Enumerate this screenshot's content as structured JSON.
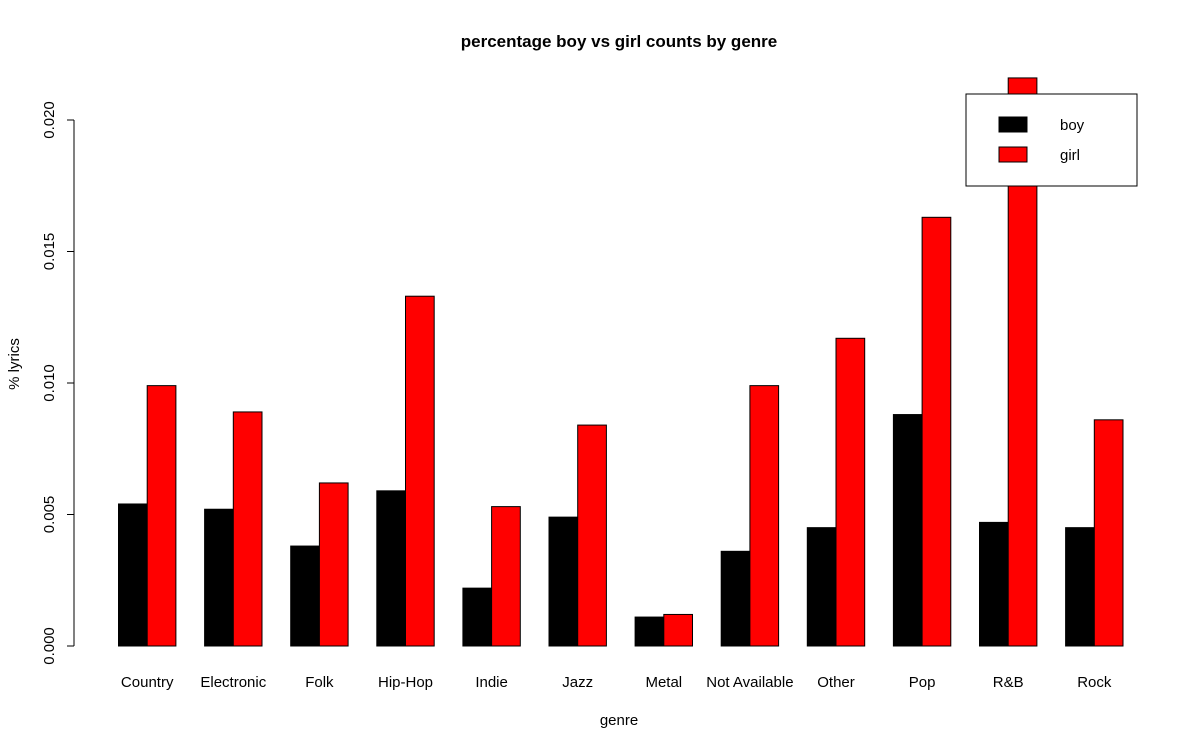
{
  "chart_data": {
    "type": "bar",
    "title": "percentage boy vs girl counts by genre",
    "xlabel": "genre",
    "ylabel": "% lyrics",
    "ylim": [
      0,
      0.02
    ],
    "yticks": [
      "0.000",
      "0.005",
      "0.010",
      "0.015",
      "0.020"
    ],
    "categories": [
      "Country",
      "Electronic",
      "Folk",
      "Hip-Hop",
      "Indie",
      "Jazz",
      "Metal",
      "Not Available",
      "Other",
      "Pop",
      "R&B",
      "Rock"
    ],
    "series": [
      {
        "name": "boy",
        "color": "#000000",
        "values": [
          0.0054,
          0.0052,
          0.0038,
          0.0059,
          0.0022,
          0.0049,
          0.0011,
          0.0036,
          0.0045,
          0.0088,
          0.0047,
          0.0045
        ]
      },
      {
        "name": "girl",
        "color": "#ff0000",
        "values": [
          0.0099,
          0.0089,
          0.0062,
          0.0133,
          0.0053,
          0.0084,
          0.0012,
          0.0099,
          0.0117,
          0.0163,
          0.0216,
          0.0086
        ]
      }
    ],
    "grid": false,
    "legend": "top-right"
  }
}
